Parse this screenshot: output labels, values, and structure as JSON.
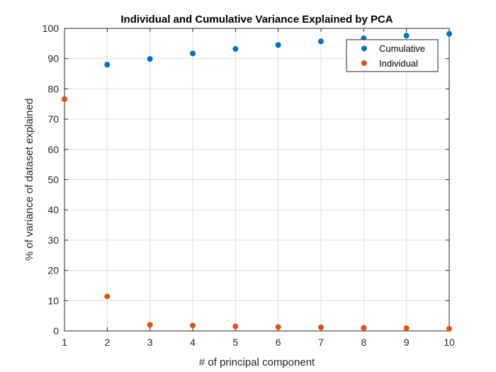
{
  "chart_data": {
    "type": "scatter",
    "title": "Individual and Cumulative Variance Explained by PCA",
    "xlabel": "# of principal component",
    "ylabel": "% of variance of dataset explained",
    "xlim": [
      1,
      10
    ],
    "ylim": [
      0,
      100
    ],
    "xticks": [
      1,
      2,
      3,
      4,
      5,
      6,
      7,
      8,
      9,
      10
    ],
    "yticks": [
      0,
      10,
      20,
      30,
      40,
      50,
      60,
      70,
      80,
      90,
      100
    ],
    "grid": true,
    "legend_position": "top-right",
    "series": [
      {
        "name": "Cumulative",
        "color": "#0072BD",
        "x": [
          1,
          2,
          3,
          4,
          5,
          6,
          7,
          8,
          9,
          10
        ],
        "y": [
          76.6,
          88.0,
          89.9,
          91.7,
          93.2,
          94.5,
          95.7,
          96.7,
          97.6,
          98.2
        ]
      },
      {
        "name": "Individual",
        "color": "#D95319",
        "x": [
          1,
          2,
          3,
          4,
          5,
          6,
          7,
          8,
          9,
          10
        ],
        "y": [
          76.6,
          11.4,
          2.0,
          1.8,
          1.5,
          1.3,
          1.2,
          1.0,
          0.9,
          0.7
        ]
      }
    ]
  }
}
